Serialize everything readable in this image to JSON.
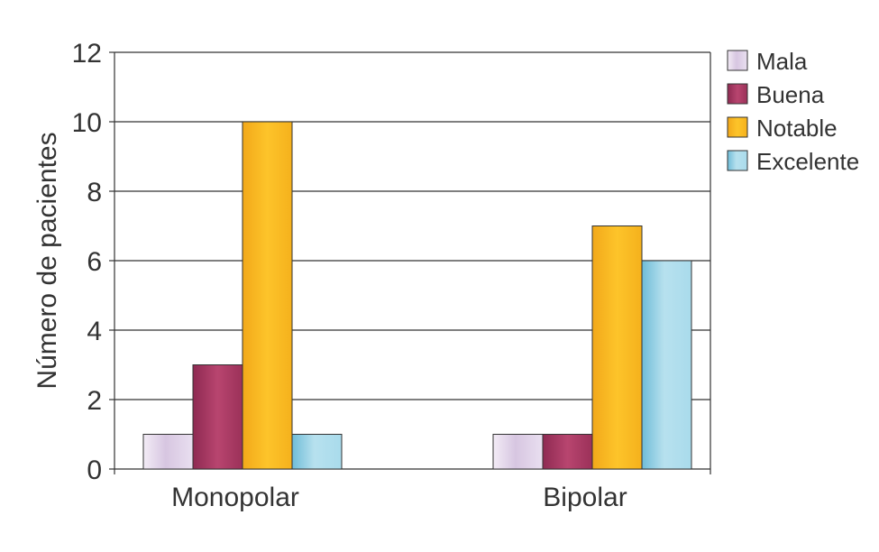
{
  "chart_data": {
    "type": "bar",
    "title": "",
    "xlabel": "",
    "ylabel": "Número de pacientes",
    "ylim": [
      0,
      12
    ],
    "yticks": [
      0,
      2,
      4,
      6,
      8,
      10,
      12
    ],
    "grid": true,
    "legend_position": "right",
    "categories": [
      "Monopolar",
      "Bipolar"
    ],
    "series": [
      {
        "name": "Mala",
        "values": [
          1,
          1
        ],
        "color": "#e6d9ec"
      },
      {
        "name": "Buena",
        "values": [
          3,
          1
        ],
        "color": "#a83a62"
      },
      {
        "name": "Notable",
        "values": [
          10,
          7
        ],
        "color": "#fbb817"
      },
      {
        "name": "Excelente",
        "values": [
          1,
          6
        ],
        "color": "#9fd5e8"
      }
    ]
  }
}
